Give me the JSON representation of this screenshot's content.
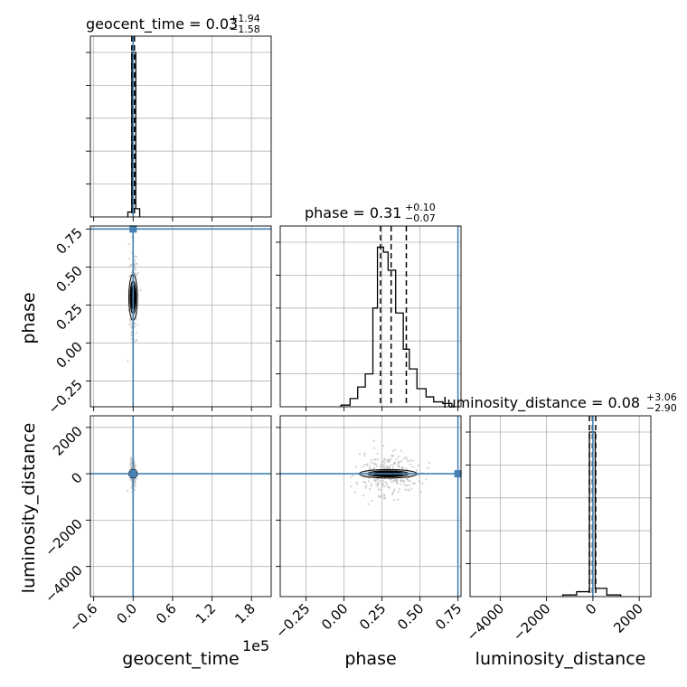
{
  "chart_data": {
    "type": "corner",
    "parameters": [
      "geocent_time",
      "phase",
      "luminosity_distance"
    ],
    "truths": {
      "geocent_time": 0,
      "phase": 0.75,
      "luminosity_distance": 0
    },
    "truth_color": "#4682b4",
    "hist_color": "#000000",
    "grid": true,
    "axis_labels": {
      "geocent_time": "geocent_time",
      "phase": "phase",
      "luminosity_distance": "luminosity_distance"
    },
    "offset_label": "1e5",
    "titles": [
      {
        "param": "geocent_time",
        "label": "geocent_time = ",
        "median": "0.03",
        "plus": "+1.94",
        "minus": "−1.58"
      },
      {
        "param": "phase",
        "label": "phase = ",
        "median": "0.31",
        "plus": "+0.10",
        "minus": "−0.07"
      },
      {
        "param": "luminosity_distance",
        "label": "luminosity_distance = ",
        "median": "0.08",
        "plus": "+3.06",
        "minus": "−2.90"
      }
    ],
    "ranges": {
      "geocent_time": [
        -0.65,
        2.1
      ],
      "phase": [
        -0.42,
        0.77
      ],
      "luminosity_distance": [
        -5300,
        2500
      ]
    },
    "ticks": {
      "geocent_time": {
        "values": [
          -0.6,
          0.0,
          0.6,
          1.2,
          1.8
        ],
        "labels": [
          "−0.6",
          "0.0",
          "0.6",
          "1.2",
          "1.8"
        ]
      },
      "phase": {
        "values": [
          -0.25,
          0.0,
          0.25,
          0.5,
          0.75
        ],
        "labels": [
          "−0.25",
          "0.00",
          "0.25",
          "0.50",
          "0.75"
        ]
      },
      "luminosity_distance": {
        "values": [
          -4000,
          -2000,
          0,
          2000
        ],
        "labels": [
          "−4000",
          "−2000",
          "0",
          "2000"
        ]
      }
    },
    "histograms": {
      "geocent_time": {
        "bin_edges": [
          -0.08,
          -0.02,
          0.04,
          0.1
        ],
        "counts": [
          0.03,
          1.0,
          0.05
        ],
        "quantiles": [
          -0.02,
          0.0,
          0.02
        ]
      },
      "phase": {
        "bin_edges": [
          -0.02,
          0.04,
          0.09,
          0.14,
          0.19,
          0.22,
          0.26,
          0.29,
          0.34,
          0.39,
          0.43,
          0.48,
          0.54,
          0.59,
          0.65,
          0.71
        ],
        "counts": [
          0.01,
          0.05,
          0.12,
          0.2,
          0.6,
          0.97,
          0.94,
          0.83,
          0.57,
          0.35,
          0.23,
          0.11,
          0.06,
          0.03,
          0.02
        ],
        "quantiles": [
          0.24,
          0.31,
          0.41
        ]
      },
      "luminosity_distance": {
        "bin_edges": [
          -1300,
          -700,
          -150,
          100,
          600,
          1200
        ],
        "counts": [
          0.01,
          0.03,
          1.0,
          0.05,
          0.01
        ],
        "quantiles": [
          -150,
          -20,
          120
        ]
      }
    },
    "scatter_2d": [
      {
        "x": "geocent_time",
        "y": "phase",
        "center": [
          0.0,
          0.3
        ],
        "core_sd": [
          0.012,
          0.04
        ],
        "spread_sd": [
          0.03,
          0.12
        ]
      },
      {
        "x": "geocent_time",
        "y": "luminosity_distance",
        "center": [
          0.0,
          0.0
        ],
        "core_sd": [
          0.01,
          40
        ],
        "spread_sd": [
          0.02,
          300
        ]
      },
      {
        "x": "phase",
        "y": "luminosity_distance",
        "center": [
          0.29,
          0.0
        ],
        "core_sd": [
          0.05,
          30
        ],
        "spread_sd": [
          0.1,
          500
        ]
      }
    ]
  }
}
